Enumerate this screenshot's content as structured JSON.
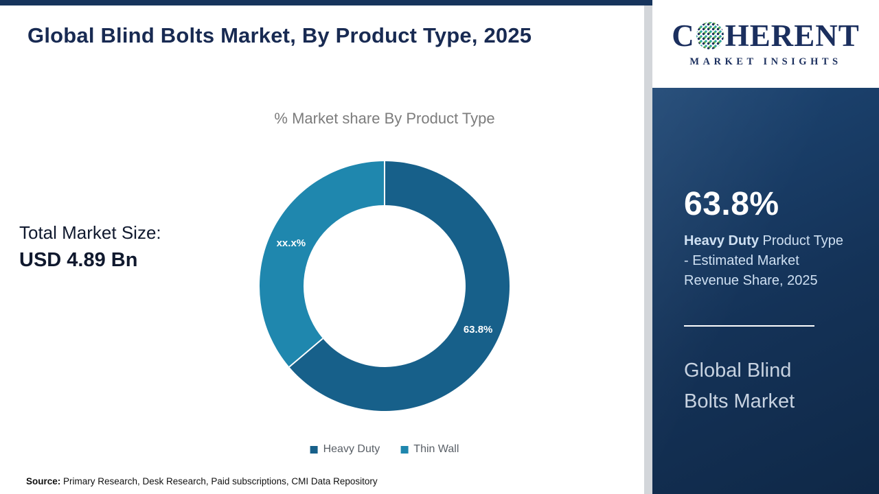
{
  "header": {
    "title": "Global Blind Bolts Market, By Product Type, 2025",
    "logo": {
      "part_c": "C",
      "part_rest": "HERENT",
      "subtitle": "MARKET INSIGHTS"
    }
  },
  "main": {
    "chart_title": "% Market share By Product Type",
    "total_label": "Total Market Size:",
    "total_value": "USD 4.89 Bn",
    "source_label": "Source:",
    "source_text": " Primary Research, Desk Research, Paid subscriptions, CMI Data Repository"
  },
  "sidebar": {
    "stat_value": "63.8%",
    "stat_bold": "Heavy Duty",
    "stat_rest": " Product Type - Estimated Market Revenue Share, 2025",
    "panel_title": "Global Blind Bolts Market"
  },
  "chart_data": {
    "type": "pie",
    "subtype": "donut",
    "title": "% Market share By Product Type",
    "unit": "%",
    "start_angle": "top",
    "direction": "clockwise",
    "legend_position": "bottom",
    "series": [
      {
        "name": "Heavy Duty",
        "value": 63.8,
        "display_label": "63.8%",
        "color": "#17608a"
      },
      {
        "name": "Thin Wall",
        "value": 36.2,
        "display_label": "xx.x%",
        "color": "#1f87ae"
      }
    ]
  }
}
